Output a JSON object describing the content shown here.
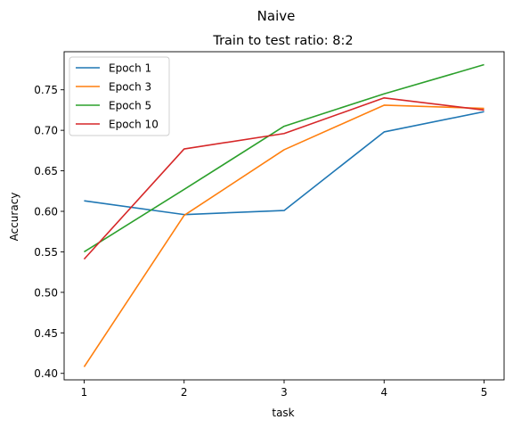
{
  "figure": {
    "suptitle": "Naive"
  },
  "chart_data": {
    "type": "line",
    "title": "Train to test ratio: 8:2",
    "xlabel": "task",
    "ylabel": "Accuracy",
    "x": [
      1,
      2,
      3,
      4,
      5
    ],
    "x_ticks": [
      "1",
      "2",
      "3",
      "4",
      "5"
    ],
    "y_ticks": [
      "0.40",
      "0.45",
      "0.50",
      "0.55",
      "0.60",
      "0.65",
      "0.70",
      "0.75"
    ],
    "xlim": [
      0.8,
      5.2
    ],
    "ylim": [
      0.392,
      0.797
    ],
    "grid": false,
    "legend_position": "upper-left",
    "series": [
      {
        "name": "Epoch 1",
        "color": "#1f77b4",
        "values": [
          0.613,
          0.596,
          0.601,
          0.698,
          0.723
        ]
      },
      {
        "name": "Epoch 3",
        "color": "#ff7f0e",
        "values": [
          0.408,
          0.595,
          0.676,
          0.731,
          0.727
        ]
      },
      {
        "name": "Epoch 5",
        "color": "#2ca02c",
        "values": [
          0.55,
          0.627,
          0.705,
          0.745,
          0.781
        ]
      },
      {
        "name": "Epoch 10",
        "color": "#d62728",
        "values": [
          0.541,
          0.677,
          0.696,
          0.74,
          0.725
        ]
      }
    ]
  }
}
